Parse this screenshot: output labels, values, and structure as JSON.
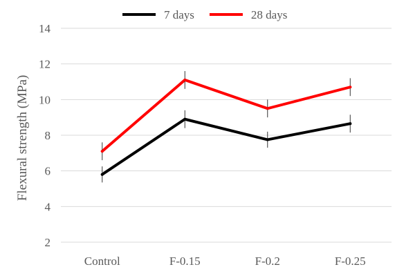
{
  "chart_data": {
    "type": "line",
    "categories": [
      "Control",
      "F-0.15",
      "F-0.2",
      "F-0.25"
    ],
    "series": [
      {
        "name": "7 days",
        "values": [
          5.8,
          8.9,
          7.75,
          8.65
        ],
        "error": [
          0.45,
          0.5,
          0.45,
          0.5
        ],
        "color": "#000000"
      },
      {
        "name": "28 days",
        "values": [
          7.1,
          11.1,
          9.5,
          10.7
        ],
        "error": [
          0.5,
          0.5,
          0.5,
          0.5
        ],
        "color": "#ff0000"
      }
    ],
    "yticks": [
      "2",
      "4",
      "6",
      "8",
      "10",
      "12",
      "14"
    ],
    "ylim": [
      2,
      14
    ],
    "ylabel": "Flexural strength (MPa)",
    "xlabel": "",
    "grid": true,
    "legend_position": "top"
  }
}
